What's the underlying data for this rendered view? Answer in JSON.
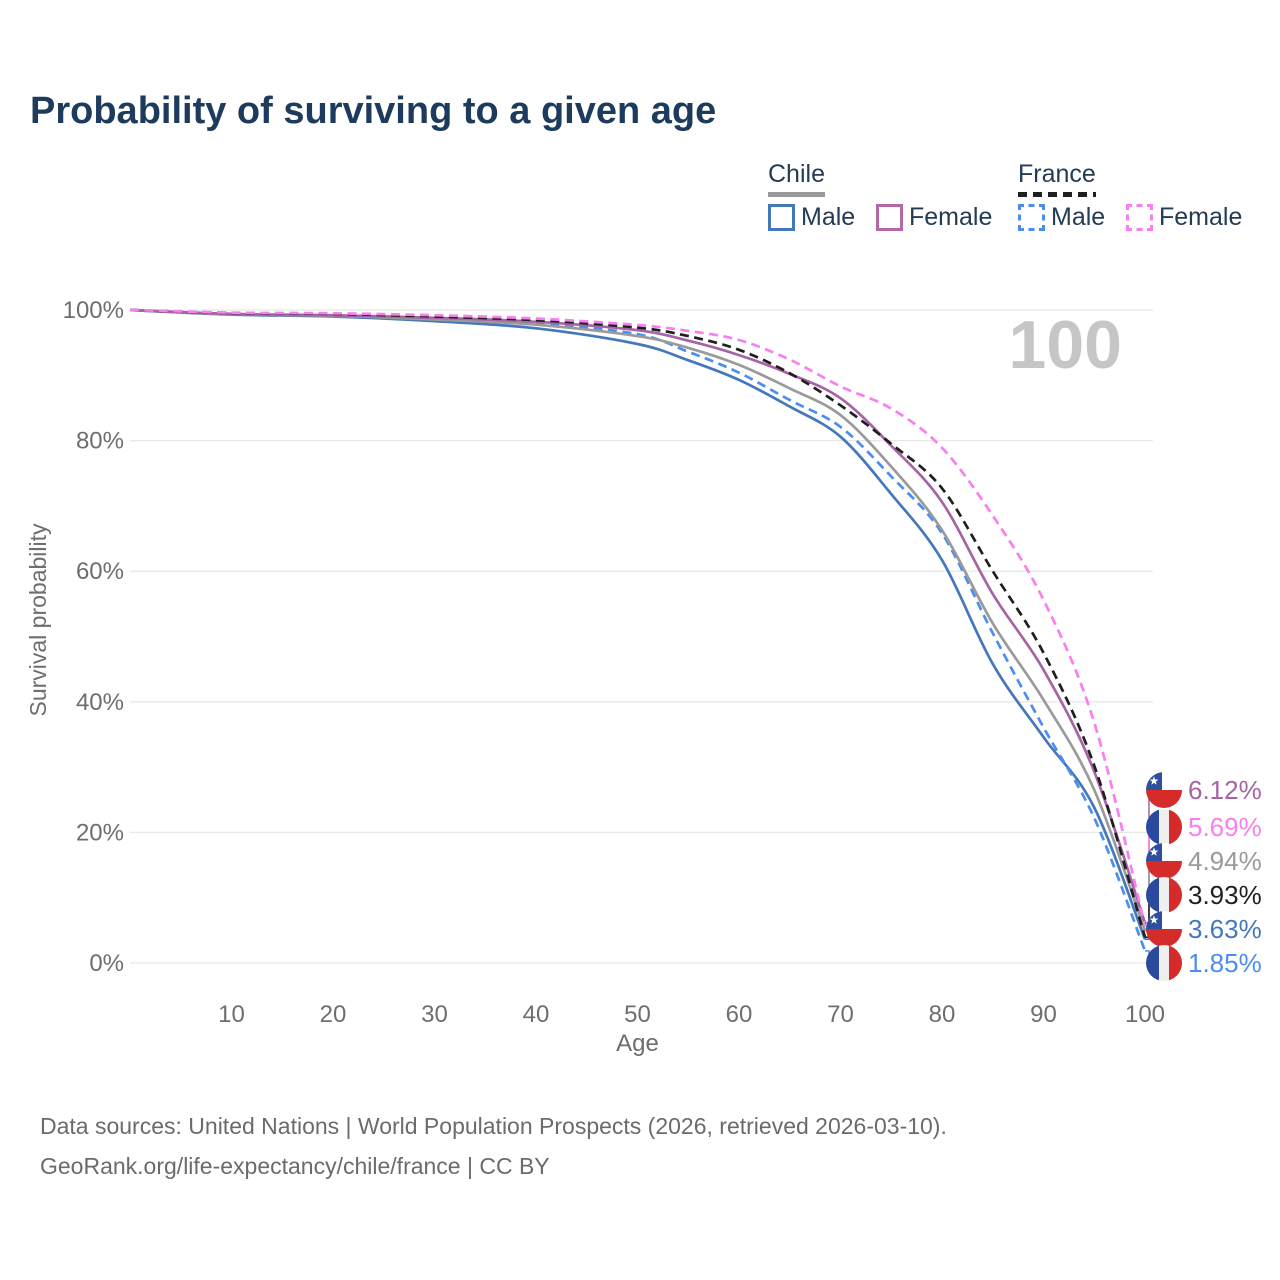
{
  "title": "Probability of surviving to a given age",
  "legend": {
    "groups": [
      {
        "label": "Chile",
        "underline_style": "solid",
        "underline_color": "#9a9a9a",
        "items": [
          {
            "label": "Male",
            "color": "#4577bb",
            "dashed": false
          },
          {
            "label": "Female",
            "color": "#b269a7",
            "dashed": false
          }
        ]
      },
      {
        "label": "France",
        "underline_style": "dashed",
        "underline_color": "#1f1f1f",
        "items": [
          {
            "label": "Male",
            "color": "#4b8ef2",
            "dashed": true
          },
          {
            "label": "Female",
            "color": "#f97ef0",
            "dashed": true
          }
        ]
      }
    ]
  },
  "watermark": "100",
  "chart_data": {
    "type": "line",
    "title": "Probability of surviving to a given age",
    "xlabel": "Age",
    "ylabel": "Survival probability",
    "xlim": [
      0,
      100
    ],
    "ylim": [
      0,
      100
    ],
    "grid": true,
    "x_ticks": [
      10,
      20,
      30,
      40,
      50,
      60,
      70,
      80,
      90,
      100
    ],
    "y_ticks": [
      0,
      20,
      40,
      60,
      80,
      100
    ],
    "y_tick_labels": [
      "0%",
      "20%",
      "40%",
      "60%",
      "80%",
      "100%"
    ],
    "ages": [
      0,
      10,
      20,
      30,
      40,
      50,
      55,
      60,
      65,
      70,
      75,
      80,
      85,
      90,
      95,
      100
    ],
    "series": [
      {
        "name": "Chile Male",
        "color": "#4577bb",
        "dash": "solid",
        "values": [
          100,
          99.3,
          99.0,
          98.3,
          97.2,
          94.8,
          92.3,
          89.3,
          85.2,
          80.6,
          71.8,
          61.7,
          45.8,
          34.6,
          23.8,
          3.63
        ]
      },
      {
        "name": "France Male",
        "color": "#4b8ef2",
        "dash": "dashed",
        "values": [
          100,
          99.5,
          99.25,
          98.75,
          98.0,
          96.3,
          93.6,
          90.4,
          86.2,
          82.1,
          74.5,
          65.8,
          50.5,
          36.1,
          22.2,
          1.85
        ]
      },
      {
        "name": "Chile (both sexes)",
        "color": "#9a9a9a",
        "dash": "solid",
        "values": [
          100,
          99.35,
          99.1,
          98.55,
          97.75,
          96.0,
          94.2,
          91.6,
          88.0,
          83.9,
          76.0,
          66.3,
          52.0,
          40.3,
          26.5,
          4.94
        ]
      },
      {
        "name": "Chile Female",
        "color": "#a764a4",
        "dash": "solid",
        "values": [
          100,
          99.4,
          99.2,
          98.8,
          98.2,
          96.9,
          95.3,
          93.1,
          90.2,
          86.5,
          79.2,
          70.6,
          56.5,
          44.9,
          29.3,
          6.12
        ]
      },
      {
        "name": "France (both sexes)",
        "color": "#1f1f1f",
        "dash": "dashed",
        "values": [
          100,
          99.55,
          99.4,
          99.0,
          98.45,
          97.3,
          96.0,
          93.9,
          90.3,
          85.4,
          79.5,
          72.7,
          60.0,
          47.5,
          30.2,
          3.93
        ]
      },
      {
        "name": "France Female",
        "color": "#f97ef0",
        "dash": "dashed",
        "values": [
          100,
          99.6,
          99.5,
          99.2,
          98.7,
          97.7,
          96.8,
          95.4,
          92.4,
          88.3,
          84.9,
          78.9,
          68.5,
          55.6,
          36.8,
          5.69
        ]
      }
    ],
    "end_labels": [
      {
        "flag": "chile",
        "text": "6.12%",
        "color": "#a764a4",
        "value": 6.12,
        "series": "Chile Female"
      },
      {
        "flag": "france",
        "text": "5.69%",
        "color": "#f97ef0",
        "value": 5.69,
        "series": "France Female"
      },
      {
        "flag": "chile",
        "text": "4.94%",
        "color": "#9a9a9a",
        "value": 4.94,
        "series": "Chile (both sexes)"
      },
      {
        "flag": "france",
        "text": "3.93%",
        "color": "#1f1f1f",
        "value": 3.93,
        "series": "France (both sexes)"
      },
      {
        "flag": "chile",
        "text": "3.63%",
        "color": "#4577bb",
        "value": 3.63,
        "series": "Chile Male"
      },
      {
        "flag": "france",
        "text": "1.85%",
        "color": "#4b8ef2",
        "value": 1.85,
        "series": "France Male"
      }
    ],
    "legend_position": "top-right",
    "watermark": "100"
  },
  "footer": {
    "line1": "Data sources: United Nations | World Population Prospects (2026, retrieved 2026-03-10).",
    "line2": "GeoRank.org/life-expectancy/chile/france | CC BY"
  }
}
